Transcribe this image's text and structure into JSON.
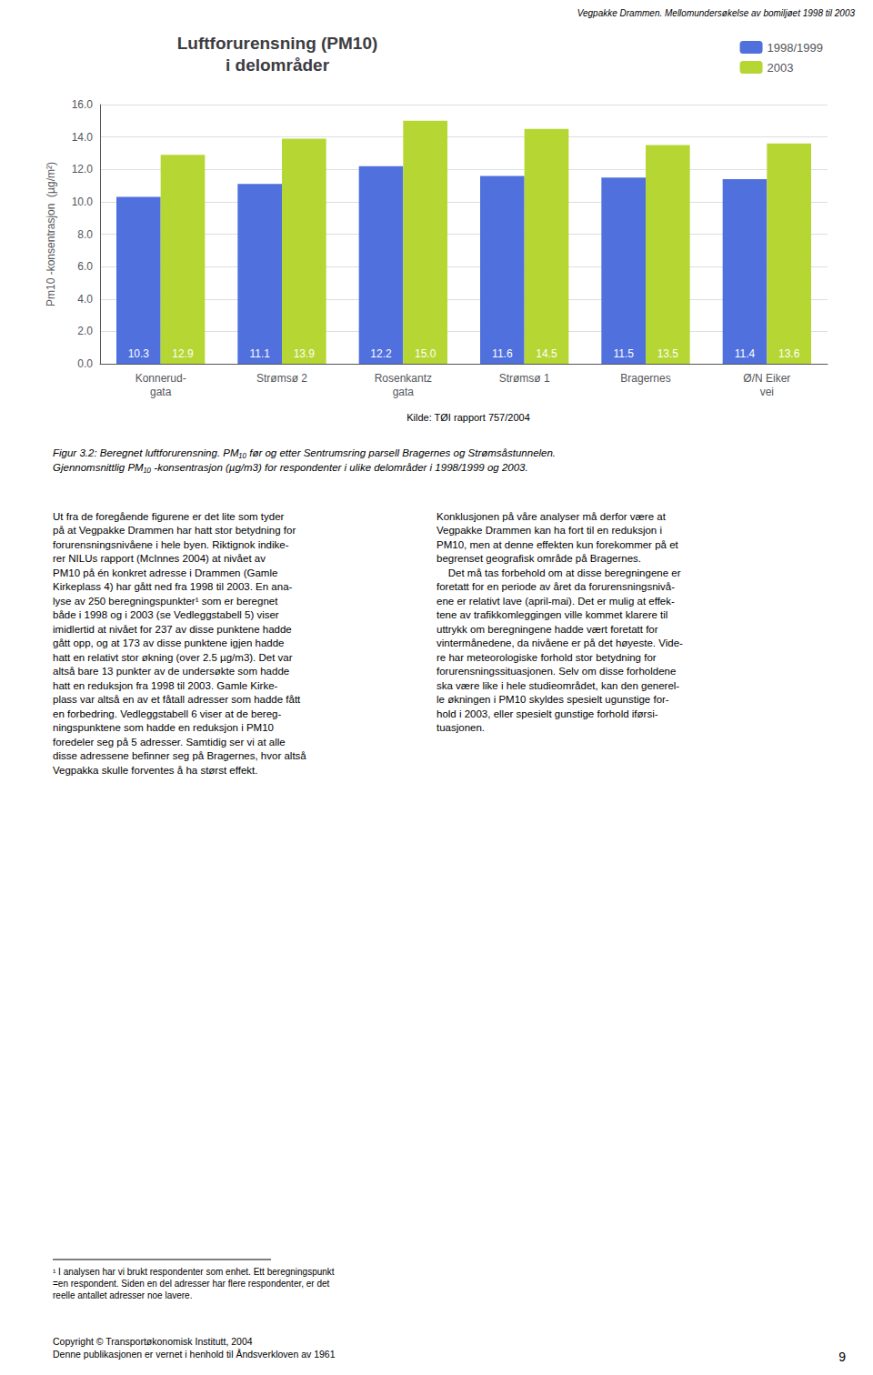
{
  "chart_data": {
    "type": "bar",
    "title": "Luftforurensning (PM10)\ni delområder",
    "categories": [
      "Konnerud-\ngata",
      "Strømsø 2",
      "Rosenkantz\ngata",
      "Strømsø 1",
      "Bragernes",
      "Ø/N Eiker\nvei"
    ],
    "series": [
      {
        "name": "1998/1999",
        "values": [
          10.3,
          11.1,
          12.2,
          11.6,
          11.5,
          11.4
        ]
      },
      {
        "name": "2003",
        "values": [
          12.9,
          13.9,
          15.0,
          14.5,
          13.5,
          13.6
        ],
        "value_labels": [
          "12.9",
          "13.9",
          "15.0",
          "14.5",
          "13.5",
          "13.6"
        ]
      }
    ],
    "ylabel": "Pm10 -konsentrasjon  (µg/m²)",
    "ylim": [
      0,
      16
    ],
    "yticks": [
      {
        "value": 0,
        "label": "0.0"
      },
      {
        "value": 2,
        "label": "2.0"
      },
      {
        "value": 4,
        "label": "4.0"
      },
      {
        "value": 6,
        "label": "6.0"
      },
      {
        "value": 8,
        "label": "8.0"
      },
      {
        "value": 10,
        "label": "10.0"
      },
      {
        "value": 12,
        "label": "12.0"
      },
      {
        "value": 14,
        "label": "14.0"
      },
      {
        "value": 16,
        "label": "16.0"
      }
    ],
    "grid": true,
    "legend": "upper right",
    "data_labels": true,
    "annotations": [
      "Vegpakke Drammen. Mellomundersøkelse av bomiljøet 1998 til 2003",
      "Kilde: TØI rapport 757/2004",
      "Figur 3.2: Beregnet luftforurensning. PM₁₀ før og etter Sentrumsring parsell Bragernes og Strømsåstunnelen.\nGjennomsnittlig PM₁₀ -konsentrasjon (µg/m3) for respondenter i ulike delområder i 1998/1999 og 2003.",
      "Ut fra de foregående figurene er det lite som tyder\npå at Vegpakke Drammen har hatt stor betydning for\nforurensningsnivåene i hele byen. Riktignok indike-\nrer NILUs rapport (McInnes 2004) at nivået av\nPM10 på én konkret adresse i Drammen (Gamle\nKirkeplass 4) har gått ned fra 1998 til 2003. En ana-\nlyse av 250 beregningspunkter¹ som er beregnet\nbåde i 1998 og i 2003 (se Vedleggstabell 5) viser\nimidlertid at nivået for 237 av disse punktene hadde\ngått opp, og at 173 av disse punktene igjen hadde\nhatt en relativt stor økning (over 2.5 µg/m3). Det var\naltså bare 13 punkter av de undersøkte som hadde\nhatt en reduksjon fra 1998 til 2003. Gamle Kirke-\nplass var altså en av et fåtall adresser som hadde fått\nen forbedring. Vedleggstabell 6 viser at de bereg-\nningspunktene som hadde en reduksjon i PM10\nforedeler seg på 5 adresser. Samtidig ser vi at alle\ndisse adressene befinner seg på Bragernes, hvor altså\nVegpakka skulle forventes å ha størst effekt.",
      "Konklusjonen på våre analyser må derfor være at\nVegpakke Drammen kan ha fort til en reduksjon i\nPM10, men at denne effekten kun forekommer på et\nbegrenset geografisk område på Bragernes.\n    Det må tas forbehold om at disse beregningene er\nforetatt for en periode av året da forurensningsnivå-\nene er relativt lave (april-mai). Det er mulig at effek-\ntene av trafikkomleggingen ville kommet klarere til\nuttrykk om beregningene hadde vært foretatt for\nvintermånedene, da nivåene er på det høyeste. Vide-\nre har meteorologiske forhold stor betydning for\nforurensningssituasjonen. Selv om disse forholdene\nska være like i hele studieområdet, kan den generel-\nle økningen i PM10 skyldes spesielt ugunstige for-\nhold i 2003, eller spesielt gunstige forhold iførsi-\ntuasjonen.",
      "¹ I analysen har vi brukt respondenter som enhet. Ett beregningspunkt\n=en respondent. Siden en del adresser har flere respondenter, er det\nreelle antallet adresser noe lavere.",
      "Copyright © Transportøkonomisk Institutt, 2004\nDenne publikasjonen er vernet i henhold til Åndsverkloven av 1961",
      "9"
    ]
  }
}
